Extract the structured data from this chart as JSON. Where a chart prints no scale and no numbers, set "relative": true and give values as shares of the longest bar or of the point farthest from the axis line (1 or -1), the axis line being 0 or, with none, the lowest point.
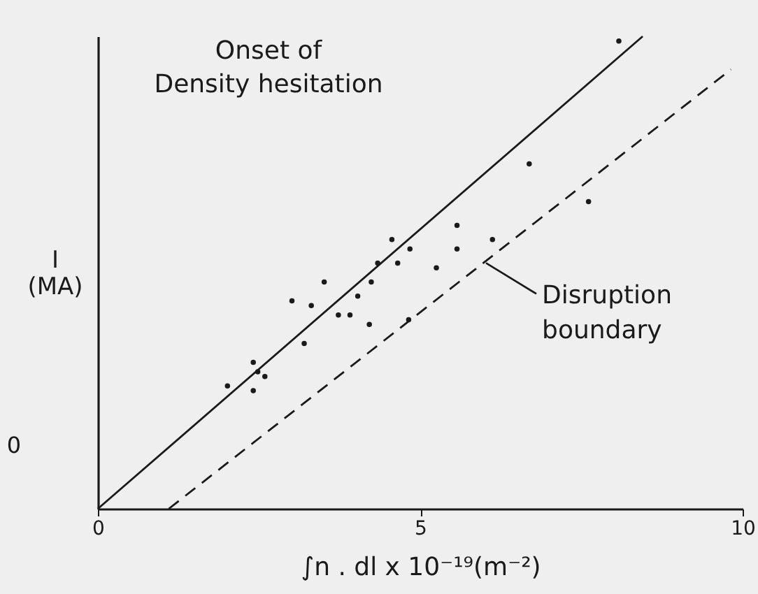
{
  "chart_data": {
    "type": "scatter",
    "xlabel": "∫n . dl x 10⁻¹⁹(m⁻²)",
    "ylabel": "I\n(MA)",
    "relative": true,
    "tick_labels": "x",
    "xlim": [
      0,
      10
    ],
    "xticks": [
      0,
      5,
      10
    ],
    "annotations": [
      "Onset of\nDensity hesitation",
      {
        "text": "Disruption\nboundary",
        "x": 6.02,
        "y": 0.52
      },
      "0"
    ],
    "series": [
      {
        "color": "#1a1a1a",
        "marker": "circle",
        "x": [
          2.01,
          2.41,
          2.41,
          2.48,
          2.59,
          3.01,
          3.2,
          3.31,
          3.51,
          3.73,
          3.91,
          4.03,
          4.21,
          4.24,
          4.34,
          4.56,
          4.65,
          4.82,
          4.84,
          5.25,
          5.57,
          5.57,
          6.12,
          6.69,
          7.61,
          8.08
        ],
        "values": [
          0.26,
          0.31,
          0.25,
          0.29,
          0.28,
          0.44,
          0.35,
          0.43,
          0.48,
          0.41,
          0.41,
          0.45,
          0.39,
          0.48,
          0.52,
          0.57,
          0.52,
          0.4,
          0.55,
          0.51,
          0.6,
          0.55,
          0.57,
          0.73,
          0.65,
          0.99
        ]
      },
      {
        "type": "line",
        "color": "#1a1a1a",
        "line_style": "solid",
        "x": [
          0,
          8.45
        ],
        "values": [
          0,
          1.0
        ]
      },
      {
        "type": "line",
        "color": "#1a1a1a",
        "line_style": "dashed",
        "x": [
          1.1,
          9.82
        ],
        "values": [
          0,
          0.93
        ]
      }
    ]
  }
}
